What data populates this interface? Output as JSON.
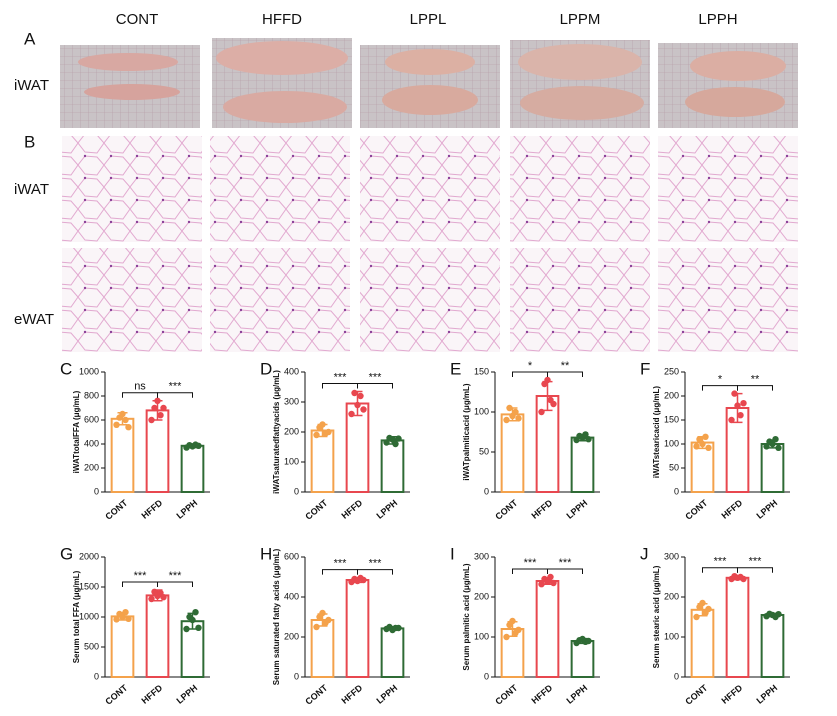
{
  "figure": {
    "columns": [
      "CONT",
      "HFFD",
      "LPPL",
      "LPPM",
      "LPPH"
    ],
    "panel_labels": [
      "A",
      "B"
    ],
    "row_labels": [
      "iWAT",
      "iWAT",
      "eWAT"
    ]
  },
  "chart_data": [
    {
      "type": "bar",
      "panel": "C",
      "y_label": "iWATtotalFFA (μg/mL)",
      "categories": [
        "CONT",
        "HFFD",
        "LPPH"
      ],
      "colors": [
        "#f4a24b",
        "#e8474f",
        "#2f6b35"
      ],
      "values": [
        610,
        680,
        385
      ],
      "errors": [
        50,
        80,
        15
      ],
      "points": [
        [
          560,
          620,
          650,
          600,
          540
        ],
        [
          600,
          700,
          760,
          640,
          700
        ],
        [
          370,
          390,
          380,
          395,
          385
        ]
      ],
      "annotations": [
        "ns",
        "***"
      ],
      "ylim": [
        0,
        1000
      ],
      "yticks": [
        0,
        200,
        400,
        600,
        800,
        1000
      ]
    },
    {
      "type": "bar",
      "panel": "D",
      "y_label": "iWATsaturatedfattyacids (μg/mL)",
      "categories": [
        "CONT",
        "HFFD",
        "LPPH"
      ],
      "colors": [
        "#f4a24b",
        "#e8474f",
        "#2f6b35"
      ],
      "values": [
        205,
        295,
        172
      ],
      "errors": [
        20,
        40,
        12
      ],
      "points": [
        [
          190,
          215,
          225,
          195,
          200
        ],
        [
          260,
          330,
          290,
          320,
          275
        ],
        [
          165,
          180,
          175,
          160,
          178
        ]
      ],
      "annotations": [
        "***",
        "***"
      ],
      "ylim": [
        0,
        400
      ],
      "yticks": [
        0,
        100,
        200,
        300,
        400
      ]
    },
    {
      "type": "bar",
      "panel": "E",
      "y_label": "iWATpalmiticacid (μg/mL)",
      "categories": [
        "CONT",
        "HFFD",
        "LPPH"
      ],
      "colors": [
        "#f4a24b",
        "#e8474f",
        "#2f6b35"
      ],
      "values": [
        97,
        120,
        68
      ],
      "errors": [
        8,
        18,
        4
      ],
      "points": [
        [
          90,
          105,
          95,
          100,
          92
        ],
        [
          100,
          135,
          140,
          115,
          110
        ],
        [
          65,
          70,
          68,
          72,
          66
        ]
      ],
      "annotations": [
        "*",
        "**"
      ],
      "ylim": [
        0,
        150
      ],
      "yticks": [
        0,
        50,
        100,
        150
      ]
    },
    {
      "type": "bar",
      "panel": "F",
      "y_label": "iWATstearicacid (μg/mL)",
      "categories": [
        "CONT",
        "HFFD",
        "LPPH"
      ],
      "colors": [
        "#f4a24b",
        "#e8474f",
        "#2f6b35"
      ],
      "values": [
        103,
        175,
        100
      ],
      "errors": [
        12,
        30,
        8
      ],
      "points": [
        [
          95,
          110,
          100,
          115,
          92
        ],
        [
          150,
          205,
          180,
          160,
          185
        ],
        [
          95,
          105,
          100,
          110,
          92
        ]
      ],
      "annotations": [
        "*",
        "**"
      ],
      "ylim": [
        0,
        250
      ],
      "yticks": [
        0,
        50,
        100,
        150,
        200,
        250
      ]
    },
    {
      "type": "bar",
      "panel": "G",
      "y_label": "Serum total FFA (μg/mL)",
      "categories": [
        "CONT",
        "HFFD",
        "LPPH"
      ],
      "colors": [
        "#f4a24b",
        "#e8474f",
        "#2f6b35"
      ],
      "values": [
        1010,
        1360,
        930
      ],
      "errors": [
        60,
        90,
        130
      ],
      "points": [
        [
          960,
          1050,
          1000,
          1080,
          970
        ],
        [
          1300,
          1420,
          1350,
          1400,
          1330
        ],
        [
          800,
          1000,
          950,
          1080,
          820
        ]
      ],
      "annotations": [
        "***",
        "***"
      ],
      "ylim": [
        0,
        2000
      ],
      "yticks": [
        0,
        500,
        1000,
        1500,
        2000
      ]
    },
    {
      "type": "bar",
      "panel": "H",
      "y_label": "Serum saturated fatty acids (μg/mL)",
      "categories": [
        "CONT",
        "HFFD",
        "LPPH"
      ],
      "colors": [
        "#f4a24b",
        "#e8474f",
        "#2f6b35"
      ],
      "values": [
        285,
        485,
        243
      ],
      "errors": [
        30,
        12,
        8
      ],
      "points": [
        [
          250,
          300,
          320,
          270,
          285
        ],
        [
          475,
          490,
          480,
          495,
          485
        ],
        [
          240,
          250,
          235,
          245,
          245
        ]
      ],
      "annotations": [
        "***",
        "***"
      ],
      "ylim": [
        0,
        600
      ],
      "yticks": [
        0,
        200,
        400,
        600
      ]
    },
    {
      "type": "bar",
      "panel": "I",
      "y_label": "Serum palmitic acid (μg/mL)",
      "categories": [
        "CONT",
        "HFFD",
        "LPPH"
      ],
      "colors": [
        "#f4a24b",
        "#e8474f",
        "#2f6b35"
      ],
      "values": [
        120,
        240,
        90
      ],
      "errors": [
        18,
        8,
        6
      ],
      "points": [
        [
          100,
          130,
          140,
          110,
          118
        ],
        [
          232,
          245,
          238,
          250,
          235
        ],
        [
          85,
          92,
          95,
          88,
          90
        ]
      ],
      "annotations": [
        "***",
        "***"
      ],
      "ylim": [
        0,
        300
      ],
      "yticks": [
        0,
        100,
        200,
        300
      ]
    },
    {
      "type": "bar",
      "panel": "J",
      "y_label": "Serum stearic acid (μg/mL)",
      "categories": [
        "CONT",
        "HFFD",
        "LPPH"
      ],
      "colors": [
        "#f4a24b",
        "#e8474f",
        "#2f6b35"
      ],
      "values": [
        168,
        248,
        155
      ],
      "errors": [
        15,
        5,
        4
      ],
      "points": [
        [
          150,
          175,
          185,
          160,
          170
        ],
        [
          245,
          252,
          248,
          250,
          245
        ],
        [
          152,
          158,
          155,
          150,
          157
        ]
      ],
      "annotations": [
        "***",
        "***"
      ],
      "ylim": [
        0,
        300
      ],
      "yticks": [
        0,
        100,
        200,
        300
      ]
    }
  ]
}
